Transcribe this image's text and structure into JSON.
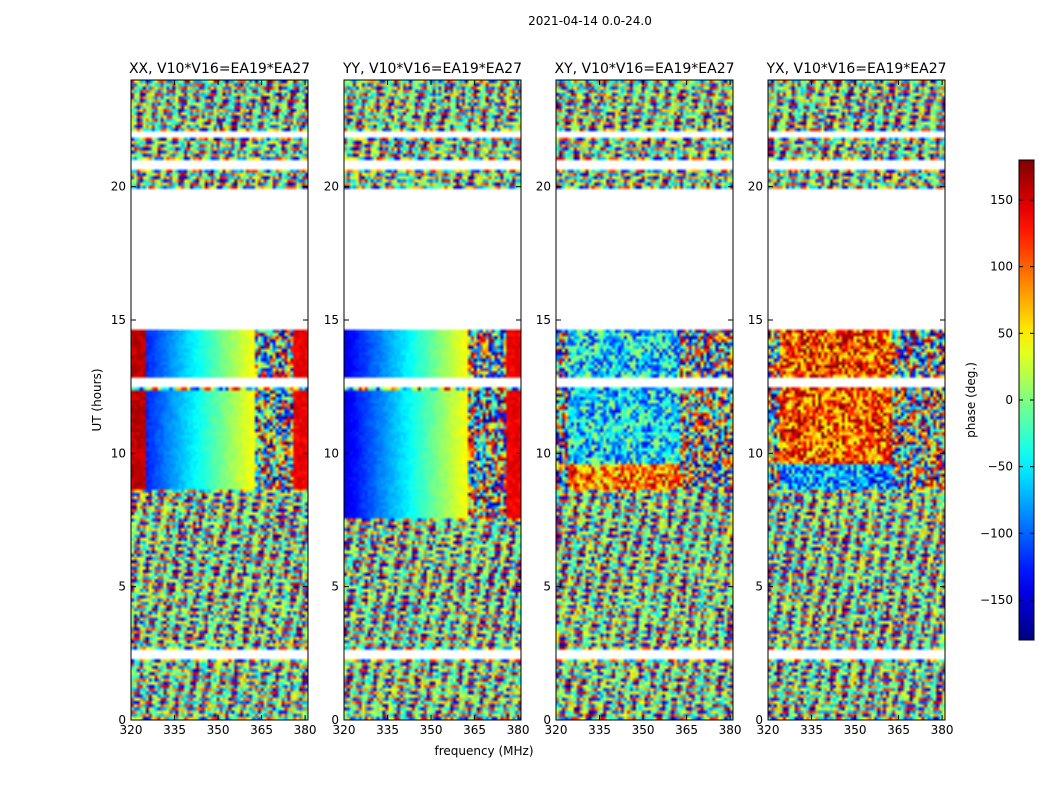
{
  "figure": {
    "suptitle": "2021-04-14 0.0-24.0"
  },
  "chart_data": {
    "type": "heatmap",
    "title": "2021-04-14 0.0-24.0",
    "xlabel": "frequency (MHz)",
    "ylabel": "UT (hours)",
    "xlim": [
      320,
      381
    ],
    "ylim": [
      0,
      24
    ],
    "xticks": [
      "320",
      "335",
      "350",
      "365",
      "380"
    ],
    "yticks": [
      "0",
      "5",
      "10",
      "15",
      "20"
    ],
    "panels": [
      {
        "name": "XX",
        "title": "XX, V10*V16=EA19*EA27"
      },
      {
        "name": "YY",
        "title": "YY, V10*V16=EA19*EA27"
      },
      {
        "name": "XY",
        "title": "XY, V10*V16=EA19*EA27"
      },
      {
        "name": "YX",
        "title": "YX, V10*V16=EA19*EA27"
      }
    ],
    "no_data_ut_ranges": [
      [
        2.3,
        2.6
      ],
      [
        12.5,
        12.8
      ],
      [
        14.6,
        19.9
      ],
      [
        20.6,
        21.0
      ],
      [
        21.9,
        22.1
      ]
    ],
    "colorbar": {
      "label": "phase (deg.)",
      "range": [
        -180,
        180
      ],
      "ticks": [
        "−150",
        "−100",
        "−50",
        "0",
        "50",
        "100",
        "150"
      ],
      "tick_values": [
        -150,
        -100,
        -50,
        0,
        50,
        100,
        150
      ],
      "colormap": "jet"
    }
  }
}
